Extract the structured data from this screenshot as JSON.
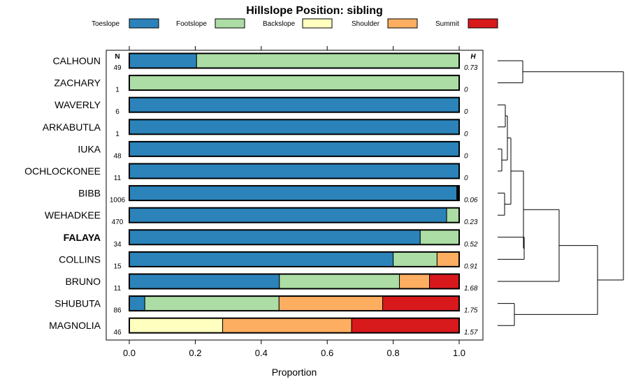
{
  "chart_data": {
    "type": "bar",
    "orientation": "horizontal",
    "stacked": true,
    "title": "Hillslope Position: sibling",
    "xlabel": "Proportion",
    "xlim": [
      0,
      1
    ],
    "xticks": [
      "0.0",
      "0.2",
      "0.4",
      "0.6",
      "0.8",
      "1.0"
    ],
    "legend_position": "top",
    "n_header": "N",
    "h_header": "H",
    "series": [
      {
        "name": "Toeslope",
        "color": "#2b83ba"
      },
      {
        "name": "Footslope",
        "color": "#abdda4"
      },
      {
        "name": "Backslope",
        "color": "#ffffbf"
      },
      {
        "name": "Shoulder",
        "color": "#fdae61"
      },
      {
        "name": "Summit",
        "color": "#d7191c"
      },
      {
        "name": "",
        "color": "#000000"
      }
    ],
    "rows": [
      {
        "label": "CALHOUN",
        "bold": false,
        "n": "49",
        "h": "0.73",
        "values": [
          0.204,
          0.796,
          0,
          0,
          0,
          0
        ]
      },
      {
        "label": "ZACHARY",
        "bold": false,
        "n": "1",
        "h": "0",
        "values": [
          0,
          1.0,
          0,
          0,
          0,
          0
        ]
      },
      {
        "label": "WAVERLY",
        "bold": false,
        "n": "6",
        "h": "0",
        "values": [
          1.0,
          0,
          0,
          0,
          0,
          0
        ]
      },
      {
        "label": "ARKABUTLA",
        "bold": false,
        "n": "1",
        "h": "0",
        "values": [
          1.0,
          0,
          0,
          0,
          0,
          0
        ]
      },
      {
        "label": "IUKA",
        "bold": false,
        "n": "48",
        "h": "0",
        "values": [
          1.0,
          0,
          0,
          0,
          0,
          0
        ]
      },
      {
        "label": "OCHLOCKONEE",
        "bold": false,
        "n": "11",
        "h": "0",
        "values": [
          1.0,
          0,
          0,
          0,
          0,
          0
        ]
      },
      {
        "label": "BIBB",
        "bold": false,
        "n": "1006",
        "h": "0.06",
        "values": [
          0.993,
          0,
          0,
          0,
          0,
          0.007
        ]
      },
      {
        "label": "WEHADKEE",
        "bold": false,
        "n": "470",
        "h": "0.23",
        "values": [
          0.962,
          0.038,
          0,
          0,
          0,
          0
        ]
      },
      {
        "label": "FALAYA",
        "bold": true,
        "n": "34",
        "h": "0.52",
        "values": [
          0.882,
          0.118,
          0,
          0,
          0,
          0
        ]
      },
      {
        "label": "COLLINS",
        "bold": false,
        "n": "15",
        "h": "0.91",
        "values": [
          0.8,
          0.133,
          0,
          0.067,
          0,
          0
        ]
      },
      {
        "label": "BRUNO",
        "bold": false,
        "n": "11",
        "h": "1.68",
        "values": [
          0.455,
          0.364,
          0,
          0.091,
          0.09,
          0
        ]
      },
      {
        "label": "SHUBUTA",
        "bold": false,
        "n": "86",
        "h": "1.75",
        "values": [
          0.047,
          0.407,
          0,
          0.314,
          0.232,
          0
        ]
      },
      {
        "label": "MAGNOLIA",
        "bold": false,
        "n": "46",
        "h": "1.57",
        "values": [
          0,
          0,
          0.283,
          0.391,
          0.326,
          0
        ]
      }
    ],
    "dendrogram": true
  }
}
